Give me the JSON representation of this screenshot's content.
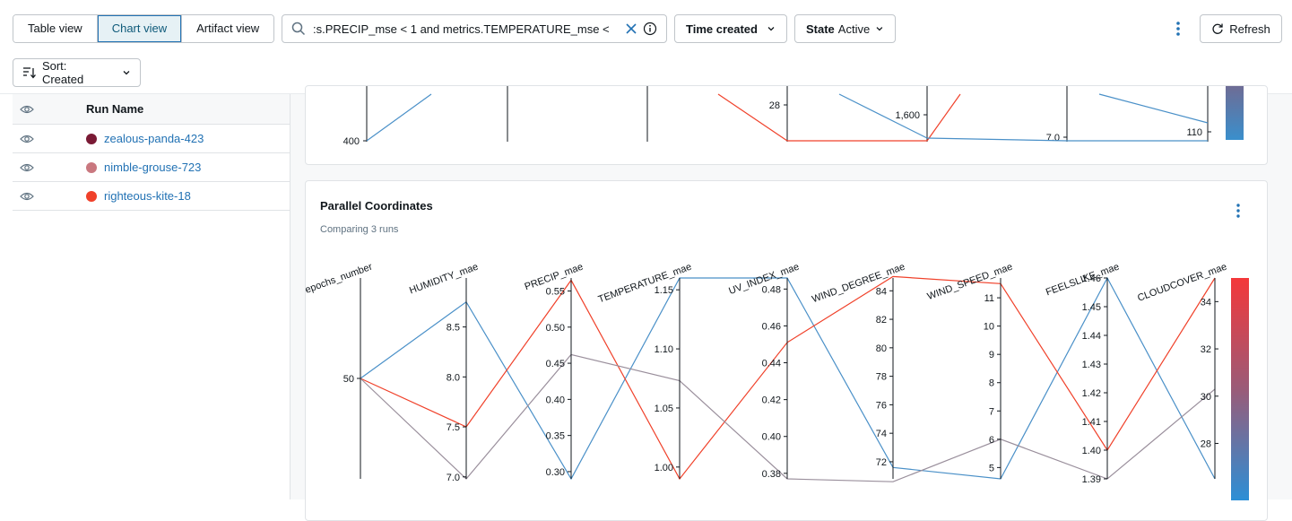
{
  "toolbar": {
    "views": [
      {
        "label": "Table view"
      },
      {
        "label": "Chart view"
      },
      {
        "label": "Artifact view"
      }
    ],
    "search_value": ":s.PRECIP_mse < 1 and metrics.TEMPERATURE_mse  <",
    "time_dropdown": "Time created",
    "state_label": "State",
    "state_value": "Active",
    "refresh_label": "Refresh",
    "sort_label": "Sort: Created"
  },
  "runs_table": {
    "header": "Run Name",
    "rows": [
      {
        "name": "zealous-panda-423",
        "color": "#7a1a35"
      },
      {
        "name": "nimble-grouse-723",
        "color": "#c9787f"
      },
      {
        "name": "righteous-kite-18",
        "color": "#f0412a"
      }
    ]
  },
  "top_chart": {
    "ticks": [
      "400",
      "28",
      "1,600",
      "7.0",
      "110"
    ]
  },
  "main_card": {
    "title": "Parallel Coordinates",
    "subtitle": "Comparing 3 runs"
  },
  "chart_data": {
    "type": "parallel_coordinates",
    "axes": [
      {
        "name": "epochs_number",
        "ticks": [
          "50"
        ]
      },
      {
        "name": "HUMIDITY_mae",
        "ticks": [
          "8.5",
          "8.0",
          "7.5",
          "7.0"
        ]
      },
      {
        "name": "PRECIP_mae",
        "ticks": [
          "0.55",
          "0.50",
          "0.45",
          "0.40",
          "0.35",
          "0.30"
        ]
      },
      {
        "name": "TEMPERATURE_mae",
        "ticks": [
          "1.15",
          "1.10",
          "1.05",
          "1.00"
        ]
      },
      {
        "name": "UV_INDEX_mae",
        "ticks": [
          "0.48",
          "0.46",
          "0.44",
          "0.42",
          "0.40",
          "0.38"
        ]
      },
      {
        "name": "WIND_DEGREE_mae",
        "ticks": [
          "84",
          "82",
          "80",
          "78",
          "76",
          "74",
          "72"
        ]
      },
      {
        "name": "WIND_SPEED_mae",
        "ticks": [
          "11",
          "10",
          "9",
          "8",
          "7",
          "6",
          "5"
        ]
      },
      {
        "name": "FEELSLIKE_mae",
        "ticks": [
          "1.46",
          "1.45",
          "1.44",
          "1.43",
          "1.42",
          "1.41",
          "1.40",
          "1.39"
        ]
      },
      {
        "name": "CLOUDCOVER_mae",
        "ticks": [
          "34",
          "32",
          "30",
          "28"
        ]
      }
    ],
    "series": [
      {
        "color": "#4a90c8",
        "values": [
          50,
          8.75,
          0.29,
          1.16,
          0.486,
          71.6,
          4.6,
          1.46,
          26.5
        ]
      },
      {
        "color": "#f0412a",
        "values": [
          50,
          7.5,
          0.565,
          0.99,
          0.451,
          85,
          11.5,
          1.4,
          35
        ]
      },
      {
        "color": "#9a8f9c",
        "values": [
          50,
          6.98,
          0.462,
          1.073,
          0.377,
          70.6,
          6.0,
          1.39,
          30.3
        ]
      }
    ]
  }
}
